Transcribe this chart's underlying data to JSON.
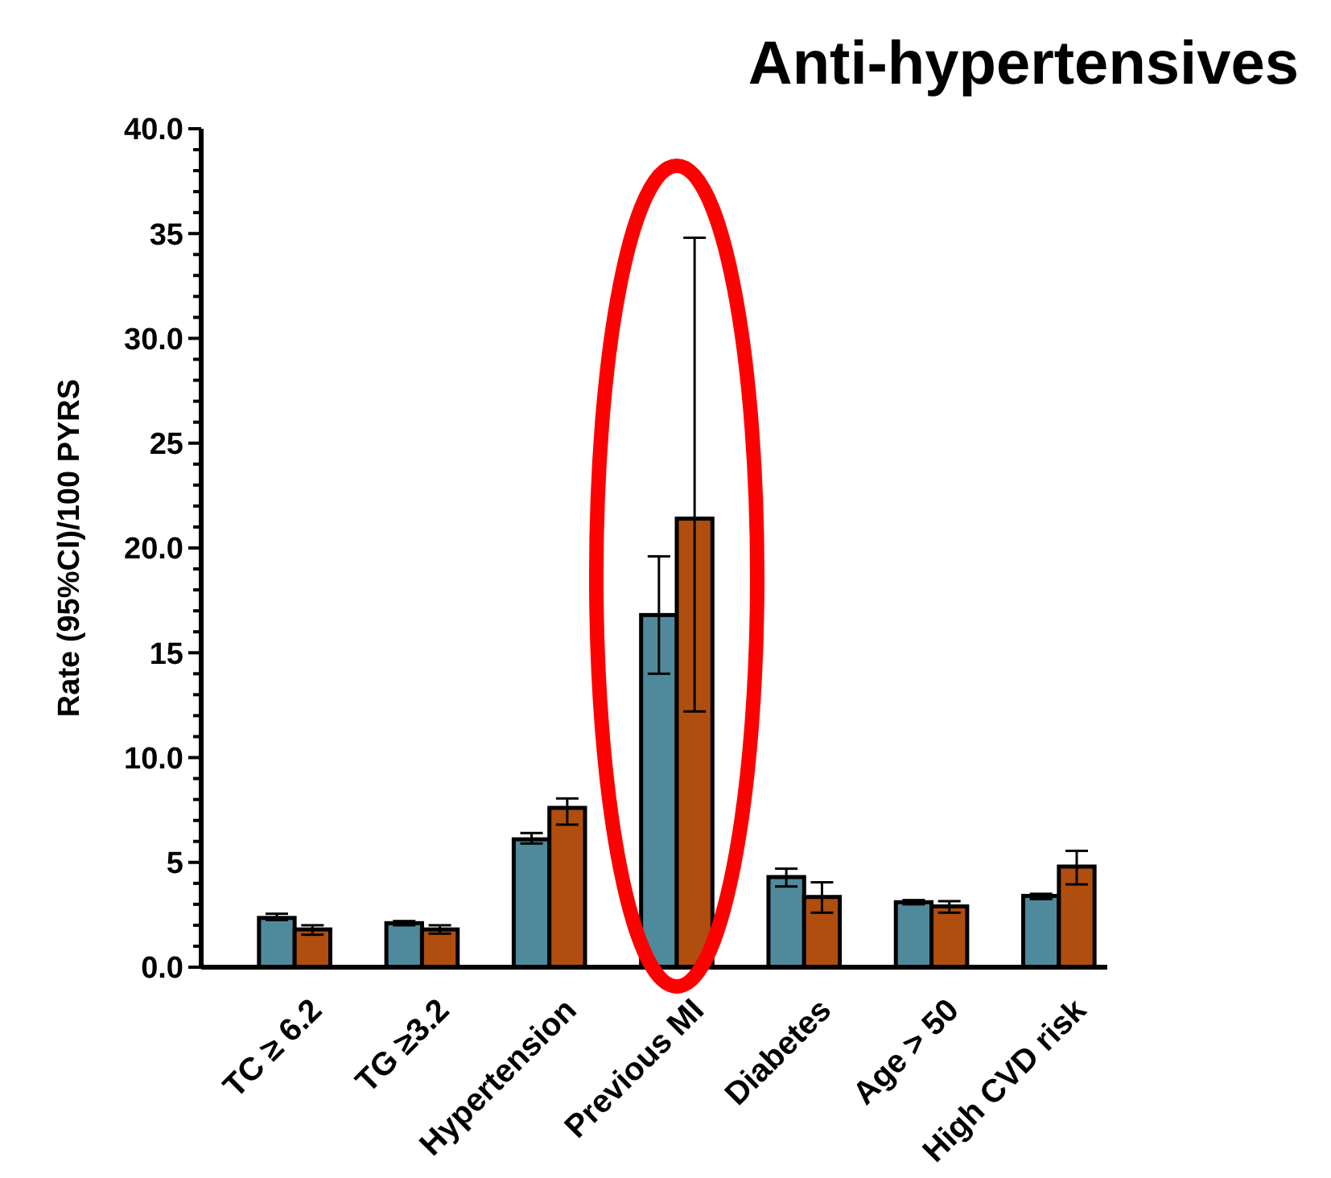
{
  "chart_data": {
    "type": "bar",
    "title": "Anti-hypertensives",
    "ylabel": "Rate (95%CI)/100 PYRS",
    "categories": [
      "TC ≥ 6.2",
      "TG ≥3.2",
      "Hypertension",
      "Previous MI",
      "Diabetes",
      "Age > 50",
      "High CVD risk"
    ],
    "series": [
      {
        "color": "#4e8a9c",
        "values": [
          2.35,
          2.1,
          6.1,
          16.8,
          4.3,
          3.1,
          3.4
        ],
        "errors": [
          [
            2.25,
            2.55
          ],
          [
            2.0,
            2.2
          ],
          [
            5.9,
            6.4
          ],
          [
            14.0,
            19.6
          ],
          [
            3.85,
            4.7
          ],
          [
            3.0,
            3.2
          ],
          [
            3.25,
            3.5
          ]
        ]
      },
      {
        "color": "#b04e10",
        "values": [
          1.8,
          1.8,
          7.6,
          21.4,
          3.35,
          2.9,
          4.8
        ],
        "errors": [
          [
            1.55,
            2.0
          ],
          [
            1.6,
            2.0
          ],
          [
            6.8,
            8.05
          ],
          [
            12.2,
            34.8
          ],
          [
            2.6,
            4.05
          ],
          [
            2.6,
            3.15
          ],
          [
            3.95,
            5.55
          ]
        ]
      }
    ],
    "ylim": [
      0,
      40
    ],
    "yticks": [
      {
        "value": 0,
        "label": "0.0"
      },
      {
        "value": 1,
        "label": null
      },
      {
        "value": 2,
        "label": null
      },
      {
        "value": 3,
        "label": null
      },
      {
        "value": 4,
        "label": null
      },
      5,
      {
        "value": 6,
        "label": null
      },
      {
        "value": 7,
        "label": null
      },
      {
        "value": 8,
        "label": null
      },
      {
        "value": 9,
        "label": null
      },
      {
        "value": 10,
        "label": "10.0"
      },
      {
        "value": 11,
        "label": null
      },
      {
        "value": 12,
        "label": null
      },
      {
        "value": 13,
        "label": null
      },
      {
        "value": 14,
        "label": null
      },
      15,
      {
        "value": 16,
        "label": null
      },
      {
        "value": 17,
        "label": null
      },
      {
        "value": 18,
        "label": null
      },
      {
        "value": 19,
        "label": null
      },
      {
        "value": 20,
        "label": "20.0"
      },
      {
        "value": 21,
        "label": null
      },
      {
        "value": 22,
        "label": null
      },
      {
        "value": 23,
        "label": null
      },
      {
        "value": 24,
        "label": null
      },
      25,
      {
        "value": 26,
        "label": null
      },
      {
        "value": 27,
        "label": null
      },
      {
        "value": 28,
        "label": null
      },
      {
        "value": 29,
        "label": null
      },
      {
        "value": 30,
        "label": "30.0"
      },
      {
        "value": 31,
        "label": null
      },
      {
        "value": 32,
        "label": null
      },
      {
        "value": 33,
        "label": null
      },
      {
        "value": 34,
        "label": null
      },
      35,
      {
        "value": 36,
        "label": null
      },
      {
        "value": 37,
        "label": null
      },
      {
        "value": 38,
        "label": null
      },
      {
        "value": 39,
        "label": null
      },
      {
        "value": 40,
        "label": "40.0"
      }
    ],
    "grid": false
  }
}
